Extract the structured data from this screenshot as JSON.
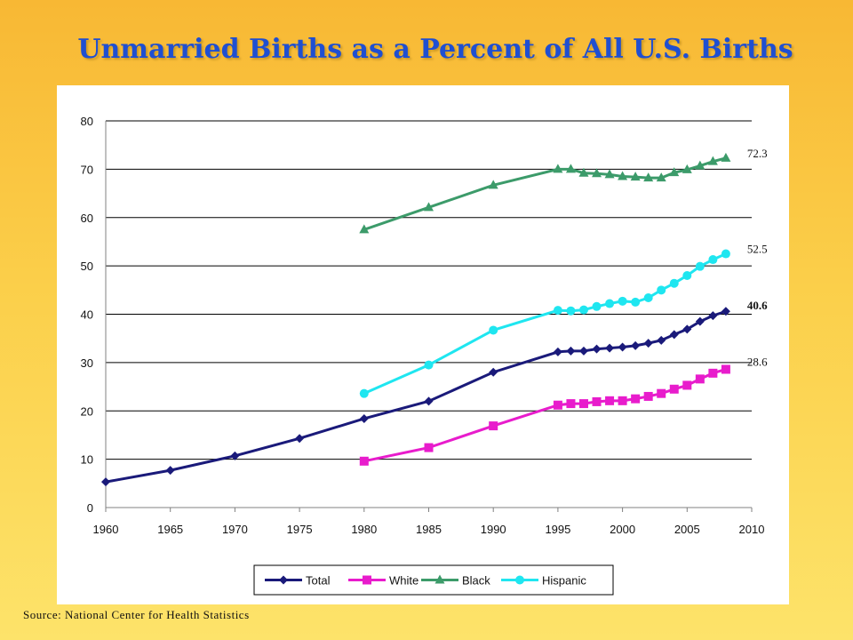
{
  "title": "Unmarried Births as a Percent of All U.S. Births",
  "source": "Source: National Center for Health Statistics",
  "colors": {
    "Total": "#1a1a7a",
    "White": "#e81ccc",
    "Black": "#3c9b6a",
    "Hispanic": "#1fe6f0"
  },
  "chart_data": {
    "type": "line",
    "title": "Unmarried Births as a Percent of All U.S. Births",
    "xlabel": "",
    "ylabel": "",
    "xlim": [
      1960,
      2010
    ],
    "ylim": [
      0,
      80
    ],
    "xticks": [
      1960,
      1965,
      1970,
      1975,
      1980,
      1985,
      1990,
      1995,
      2000,
      2005,
      2010
    ],
    "yticks": [
      0,
      10,
      20,
      30,
      40,
      50,
      60,
      70,
      80
    ],
    "grid": "horizontal",
    "legend": "bottom",
    "series": [
      {
        "name": "Total",
        "marker": "diamond",
        "x": [
          1960,
          1965,
          1970,
          1975,
          1980,
          1985,
          1990,
          1995,
          1996,
          1997,
          1998,
          1999,
          2000,
          2001,
          2002,
          2003,
          2004,
          2005,
          2006,
          2007,
          2008
        ],
        "y": [
          5.3,
          7.7,
          10.7,
          14.3,
          18.4,
          22.0,
          28.0,
          32.2,
          32.4,
          32.4,
          32.8,
          33.0,
          33.2,
          33.5,
          34.0,
          34.6,
          35.8,
          36.9,
          38.5,
          39.7,
          40.6
        ],
        "end_label": "40.6"
      },
      {
        "name": "White",
        "marker": "square",
        "x": [
          1980,
          1985,
          1990,
          1995,
          1996,
          1997,
          1998,
          1999,
          2000,
          2001,
          2002,
          2003,
          2004,
          2005,
          2006,
          2007,
          2008
        ],
        "y": [
          9.6,
          12.4,
          16.9,
          21.2,
          21.5,
          21.5,
          21.9,
          22.1,
          22.1,
          22.5,
          23.0,
          23.6,
          24.5,
          25.3,
          26.6,
          27.8,
          28.6
        ],
        "end_label": "28.6"
      },
      {
        "name": "Black",
        "marker": "triangle",
        "x": [
          1980,
          1985,
          1990,
          1995,
          1996,
          1997,
          1998,
          1999,
          2000,
          2001,
          2002,
          2003,
          2004,
          2005,
          2006,
          2007,
          2008
        ],
        "y": [
          57.5,
          62.1,
          66.7,
          70.0,
          70.0,
          69.2,
          69.1,
          68.9,
          68.5,
          68.4,
          68.2,
          68.2,
          69.3,
          69.9,
          70.7,
          71.6,
          72.3
        ],
        "end_label": "72.3"
      },
      {
        "name": "Hispanic",
        "marker": "circle",
        "x": [
          1980,
          1985,
          1990,
          1995,
          1996,
          1997,
          1998,
          1999,
          2000,
          2001,
          2002,
          2003,
          2004,
          2005,
          2006,
          2007,
          2008
        ],
        "y": [
          23.6,
          29.5,
          36.7,
          40.8,
          40.7,
          40.9,
          41.6,
          42.2,
          42.7,
          42.5,
          43.4,
          45.0,
          46.4,
          48.0,
          49.9,
          51.3,
          52.5
        ],
        "end_label": "52.5"
      }
    ]
  }
}
